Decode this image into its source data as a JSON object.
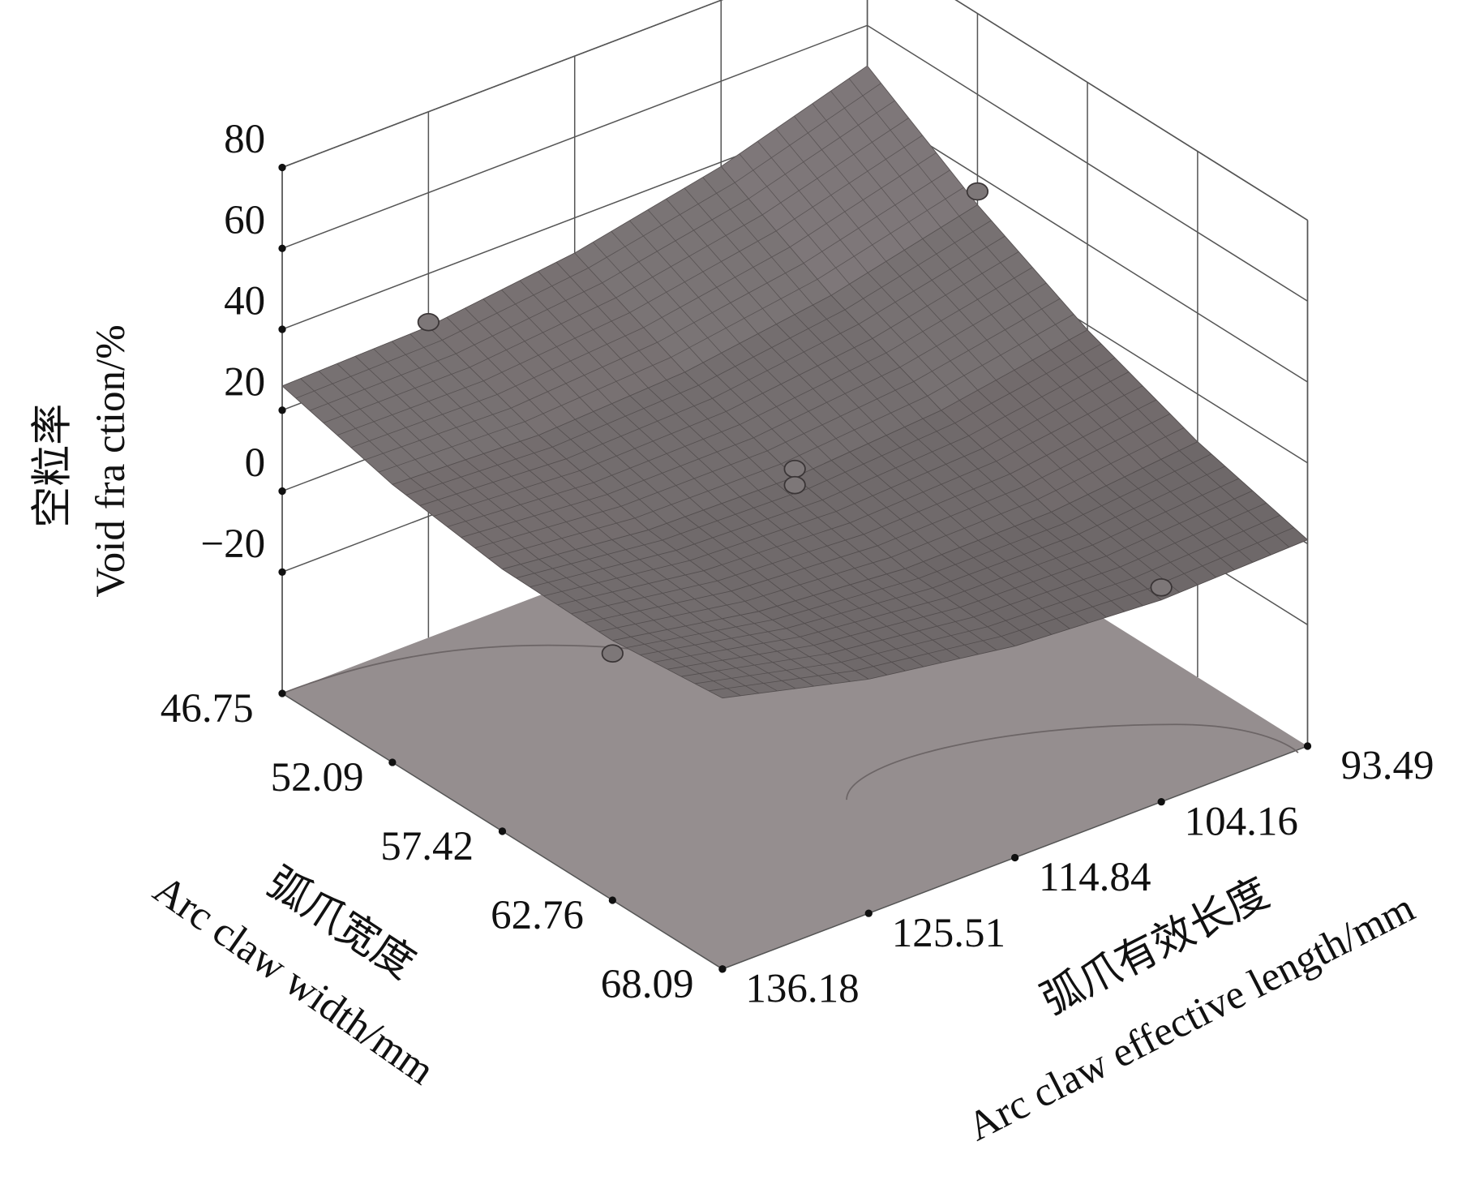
{
  "chart_data": {
    "type": "surface",
    "zlabel": [
      "空粒率",
      "Void fra ction/%"
    ],
    "xlabel": [
      "弧爪宽度",
      "Arc claw width/mm"
    ],
    "ylabel": [
      "弧爪有效长度",
      "Arc claw effective length/mm"
    ],
    "x": [
      46.75,
      52.09,
      57.42,
      62.76,
      68.09
    ],
    "y": [
      136.18,
      125.51,
      114.84,
      104.16,
      93.49
    ],
    "z": [
      [
        26,
        26.9,
        31.3,
        38.9,
        50
      ],
      [
        18.7,
        17.1,
        18.9,
        24.1,
        32.7
      ],
      [
        14.8,
        10.7,
        10,
        12.7,
        18.8
      ],
      [
        14.2,
        7.6,
        4.4,
        4.6,
        8.2
      ],
      [
        17,
        7.9,
        2.3,
        -0.1,
        1
      ]
    ],
    "xlim": [
      46.75,
      68.09
    ],
    "ylim": [
      136.18,
      93.49
    ],
    "zlim": [
      -50,
      80
    ],
    "xticks": [
      46.75,
      52.09,
      57.42,
      62.76,
      68.09
    ],
    "yticks": [
      136.18,
      125.51,
      114.84,
      104.16,
      93.49
    ],
    "zticks": [
      {
        "value": -20,
        "label": "−20"
      },
      0,
      20,
      40,
      60,
      80
    ],
    "points": {
      "x": [
        46.75,
        52.09,
        57.42,
        57.42,
        68.09,
        62.76
      ],
      "y": [
        125.51,
        93.49,
        114.84,
        114.84,
        104.16,
        136.18
      ],
      "z": [
        28,
        36,
        12,
        8,
        3,
        11
      ]
    },
    "color": "#6e6869",
    "floor_color": "#958e8f"
  }
}
